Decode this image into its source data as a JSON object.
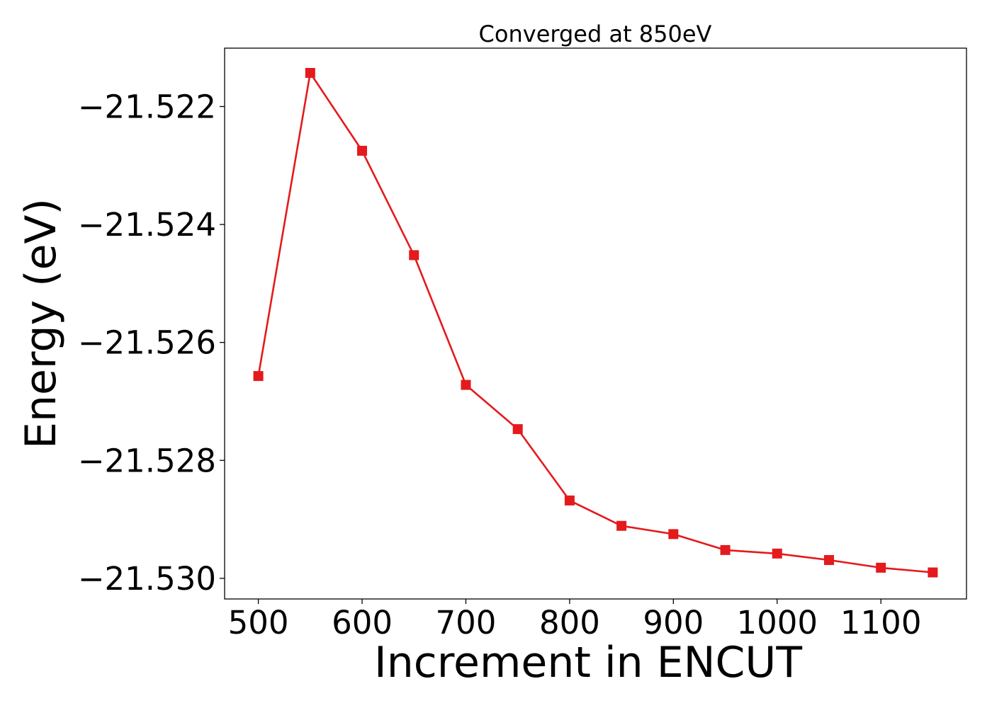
{
  "chart_data": {
    "type": "line",
    "title": "Converged at 850eV",
    "xlabel": "Increment in ENCUT",
    "ylabel": "Energy (eV)",
    "x": [
      500,
      550,
      600,
      650,
      700,
      750,
      800,
      850,
      900,
      950,
      1000,
      1050,
      1100,
      1150
    ],
    "series": [
      {
        "values": [
          -21.52657,
          -21.52143,
          -21.52275,
          -21.52452,
          -21.52672,
          -21.52747,
          -21.52868,
          -21.52911,
          -21.52925,
          -21.52952,
          -21.52958,
          -21.52969,
          -21.52982,
          -21.5299
        ],
        "color": "#e41a1c",
        "marker": "square"
      }
    ],
    "xlim": [
      467.5,
      1182.5
    ],
    "ylim": [
      -21.53035,
      -21.52101
    ],
    "xticks": [
      500,
      600,
      700,
      800,
      900,
      1000,
      1100
    ],
    "xtick_labels": [
      "500",
      "600",
      "700",
      "800",
      "900",
      "1000",
      "1100"
    ],
    "yticks": [
      -21.522,
      -21.524,
      -21.526,
      -21.528,
      -21.53
    ],
    "ytick_labels": [
      "−21.522",
      "−21.524",
      "−21.526",
      "−21.528",
      "−21.530"
    ],
    "grid": false,
    "legend": "none"
  }
}
